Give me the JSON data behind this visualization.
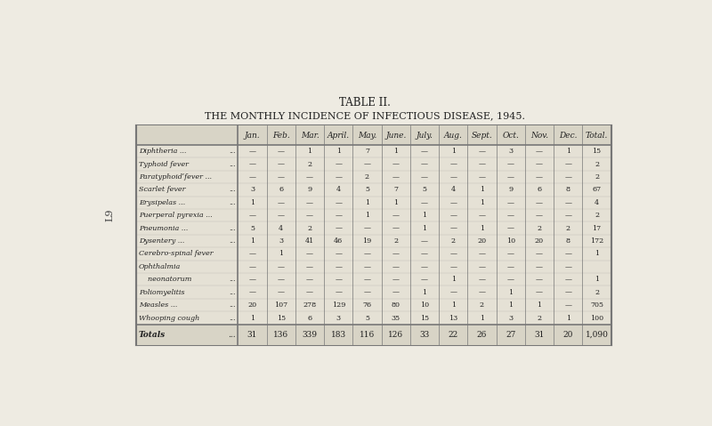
{
  "title1": "TABLE II.",
  "title2": "THE MONTHLY INCIDENCE OF INFECTIOUS DISEASE, 1945.",
  "columns": [
    "Jan.",
    "Feb.",
    "Mar.",
    "April.",
    "May.",
    "June.",
    "July.",
    "Aug.",
    "Sept.",
    "Oct.",
    "Nov.",
    "Dec.",
    "Total."
  ],
  "diseases": [
    "Diphtheria ...        ...",
    "Typhoid fever        ...",
    "Paratyphoidʹfever ...",
    "Scarlet fever        ...",
    "Erysipelas ...        ...",
    "Puerperal pyrexia ...",
    "Pneumonia ...        ...",
    "Dysentery ...        ...",
    "Cerebro-spinal fever",
    "Ophthalmia",
    "    neonatorum    ...",
    "Poliomyelitis        ...",
    "Measles ...          ...",
    "Whooping cough ..."
  ],
  "diseases_display": [
    [
      "Diphtheria ...",
      "..."
    ],
    [
      "Typhoid fever",
      "..."
    ],
    [
      "Paratyphoidʹfever ...",
      ""
    ],
    [
      "Scarlet fever",
      "..."
    ],
    [
      "Erysipelas ...",
      "..."
    ],
    [
      "Puerperal pyrexia ...",
      ""
    ],
    [
      "Pneumonia ...",
      "..."
    ],
    [
      "Dysentery ...",
      "..."
    ],
    [
      "Cerebro-spinal fever",
      ""
    ],
    [
      "Ophthalmia",
      ""
    ],
    [
      "    neonatorum",
      "..."
    ],
    [
      "Poliomyelitis",
      "..."
    ],
    [
      "Measles ...",
      "..."
    ],
    [
      "Whooping cough",
      "..."
    ]
  ],
  "data": [
    [
      "—",
      "—",
      "1",
      "1",
      "7",
      "1",
      "—",
      "1",
      "—",
      "3",
      "—",
      "1",
      "15"
    ],
    [
      "—",
      "—",
      "2",
      "—",
      "—",
      "—",
      "—",
      "—",
      "—",
      "—",
      "—",
      "—",
      "2"
    ],
    [
      "—",
      "—",
      "—",
      "—",
      "2",
      "—",
      "—",
      "—",
      "—",
      "—",
      "—",
      "—",
      "2"
    ],
    [
      "3",
      "6",
      "9",
      "4",
      "5",
      "7",
      "5",
      "4",
      "1",
      "9",
      "6",
      "8",
      "67"
    ],
    [
      "1",
      "—",
      "—",
      "—",
      "1",
      "1",
      "—",
      "—",
      "1",
      "—",
      "—",
      "—",
      "4"
    ],
    [
      "—",
      "—",
      "—",
      "—",
      "1",
      "—",
      "1",
      "—",
      "—",
      "—",
      "—",
      "—",
      "2"
    ],
    [
      "5",
      "4",
      "2",
      "—",
      "—",
      "—",
      "1",
      "—",
      "1",
      "—",
      "2",
      "2",
      "17"
    ],
    [
      "1",
      "3",
      "41",
      "46",
      "19",
      "2",
      "—",
      "2",
      "20",
      "10",
      "20",
      "8",
      "172"
    ],
    [
      "—",
      "1",
      "—",
      "—",
      "—",
      "—",
      "—",
      "—",
      "—",
      "—",
      "—",
      "—",
      "1"
    ],
    [
      "—",
      "—",
      "—",
      "—",
      "—",
      "—",
      "—",
      "—",
      "—",
      "—",
      "—",
      "—",
      ""
    ],
    [
      "—",
      "—",
      "—",
      "—",
      "—",
      "—",
      "—",
      "1",
      "—",
      "—",
      "—",
      "—",
      "1"
    ],
    [
      "—",
      "—",
      "—",
      "—",
      "—",
      "—",
      "1",
      "—",
      "—",
      "1",
      "—",
      "—",
      "2"
    ],
    [
      "20",
      "107",
      "278",
      "129",
      "76",
      "80",
      "10",
      "1",
      "2",
      "1",
      "1",
      "—",
      "705"
    ],
    [
      "1",
      "15",
      "6",
      "3",
      "5",
      "35",
      "15",
      "13",
      "1",
      "3",
      "2",
      "1",
      "100"
    ]
  ],
  "totals": [
    "31",
    "136",
    "339",
    "183",
    "116",
    "126",
    "33",
    "22",
    "26",
    "27",
    "31",
    "20",
    "1,090"
  ],
  "bg_color": "#eeebe2",
  "table_bg": "#e5e1d5",
  "header_bg": "#d8d4c6",
  "totals_bg": "#d8d4c6",
  "line_color": "#777777",
  "text_color": "#222222",
  "sidebar_label": "L9"
}
